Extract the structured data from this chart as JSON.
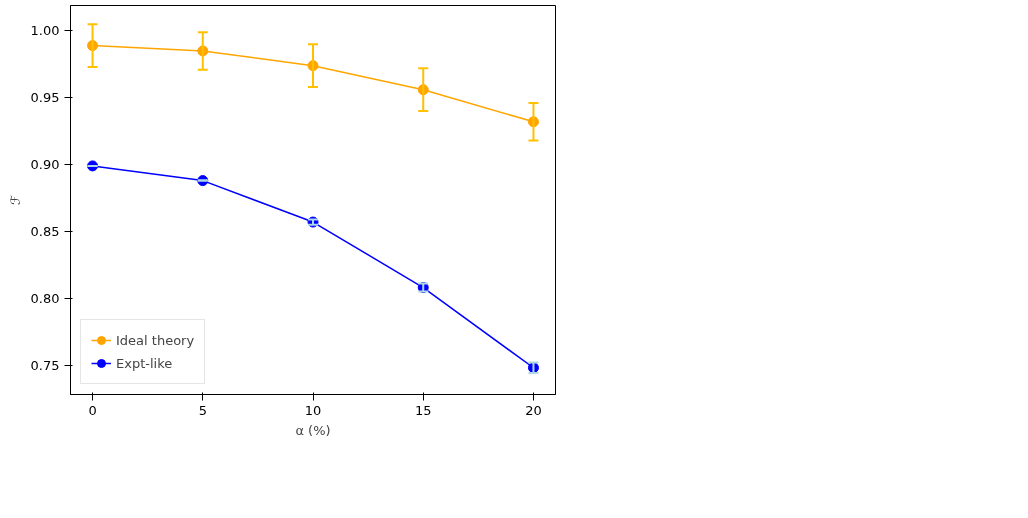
{
  "chart_data": {
    "type": "line",
    "xlabel": "α (%)",
    "ylabel": "ℱ",
    "x": [
      0,
      5,
      10,
      15,
      20
    ],
    "series": [
      {
        "name": "Ideal theory",
        "color": "#ffa500",
        "values": [
          0.989,
          0.985,
          0.974,
          0.956,
          0.932
        ],
        "errors": [
          0.016,
          0.014,
          0.016,
          0.016,
          0.014
        ]
      },
      {
        "name": "Expt-like",
        "color": "#0000ff",
        "values": [
          0.899,
          0.888,
          0.857,
          0.808,
          0.748
        ],
        "errors": [
          null,
          null,
          0.002,
          0.003,
          0.004
        ]
      }
    ],
    "xlim": [
      -1,
      21
    ],
    "xticks": [
      0,
      5,
      10,
      15,
      20
    ],
    "ylim": [
      0.728,
      1.019
    ],
    "yticks": [
      {
        "value": 0.75,
        "label": "0.75"
      },
      {
        "value": 0.8,
        "label": "0.80"
      },
      {
        "value": 0.85,
        "label": "0.85"
      },
      {
        "value": 0.9,
        "label": "0.90"
      },
      {
        "value": 0.95,
        "label": "0.95"
      },
      {
        "value": 1.0,
        "label": "1.00"
      }
    ],
    "marker": "circle",
    "legend": "bottom left",
    "grid": false
  }
}
